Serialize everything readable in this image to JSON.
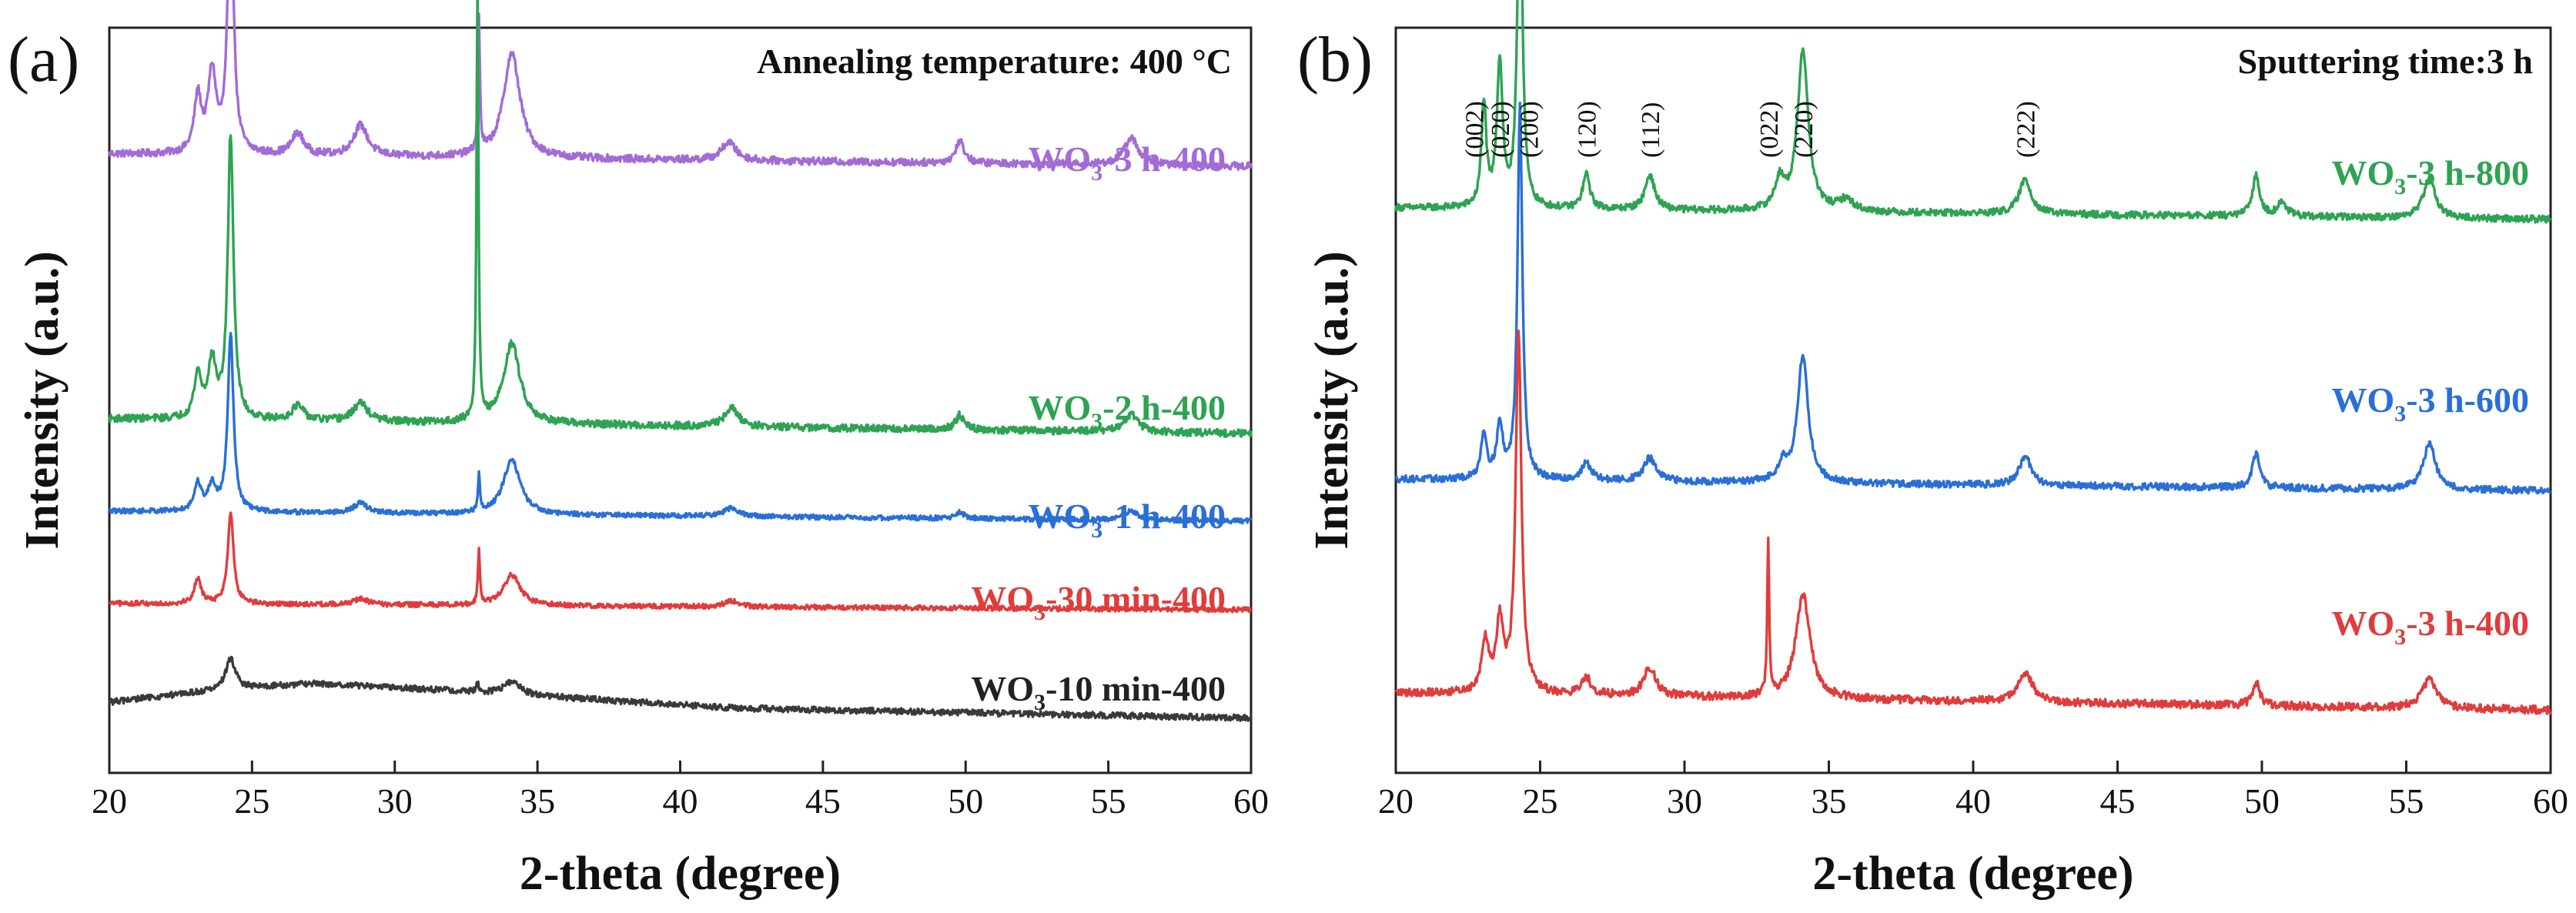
{
  "figure": {
    "panels": [
      "(a)",
      "(b)"
    ]
  },
  "chart_data": [
    {
      "panel": "(a)",
      "type": "line",
      "title": "Annealing temperature: 400 °C",
      "xlabel": "2-theta (degree)",
      "ylabel": "Intensity (a.u.)",
      "xlim": [
        20,
        60
      ],
      "xticks": [
        "20",
        "25",
        "30",
        "35",
        "40",
        "45",
        "50",
        "55",
        "60"
      ],
      "series": [
        {
          "name": "WO3-3 h-400",
          "label_main": "WO",
          "label_sub": "3",
          "label_rest": "-3 h-400",
          "color": "#a36bd6",
          "offset": 4.7,
          "noise": 0.03,
          "baseline": [
            [
              20,
              0.05
            ],
            [
              60,
              -0.05
            ]
          ],
          "peaks": [
            [
              23.1,
              0.45,
              0.15
            ],
            [
              23.6,
              0.65,
              0.17
            ],
            [
              24.25,
              2.2,
              0.12
            ],
            [
              26.6,
              0.18,
              0.25
            ],
            [
              28.8,
              0.25,
              0.3
            ],
            [
              32.95,
              1.1,
              0.04
            ],
            [
              34.1,
              0.85,
              0.35
            ],
            [
              41.7,
              0.15,
              0.3
            ],
            [
              49.8,
              0.18,
              0.18
            ],
            [
              55.8,
              0.22,
              0.3
            ]
          ]
        },
        {
          "name": "WO3-2 h-400",
          "label_main": "WO",
          "label_sub": "3",
          "label_rest": "-2 h-400",
          "color": "#2ea353",
          "offset": 2.6,
          "noise": 0.03,
          "baseline": [
            [
              20,
              0.0
            ],
            [
              60,
              -0.12
            ]
          ],
          "peaks": [
            [
              23.1,
              0.35,
              0.15
            ],
            [
              23.6,
              0.45,
              0.17
            ],
            [
              24.25,
              2.3,
              0.12
            ],
            [
              26.6,
              0.12,
              0.25
            ],
            [
              28.8,
              0.15,
              0.3
            ],
            [
              32.9,
              3.6,
              0.04
            ],
            [
              34.1,
              0.65,
              0.35
            ],
            [
              41.8,
              0.15,
              0.3
            ],
            [
              49.8,
              0.12,
              0.18
            ],
            [
              55.8,
              0.14,
              0.3
            ]
          ]
        },
        {
          "name": "WO3-1 h-400",
          "label_main": "WO",
          "label_sub": "3",
          "label_rest": "-1 h-400",
          "color": "#2a6fd6",
          "offset": 1.85,
          "noise": 0.02,
          "baseline": [
            [
              20,
              0.0
            ],
            [
              60,
              -0.08
            ]
          ],
          "peaks": [
            [
              23.1,
              0.22,
              0.15
            ],
            [
              23.6,
              0.2,
              0.17
            ],
            [
              24.25,
              1.45,
              0.12
            ],
            [
              28.8,
              0.08,
              0.3
            ],
            [
              32.95,
              0.3,
              0.04
            ],
            [
              34.1,
              0.45,
              0.35
            ],
            [
              41.8,
              0.07,
              0.3
            ],
            [
              49.8,
              0.05,
              0.18
            ],
            [
              55.8,
              0.07,
              0.3
            ]
          ]
        },
        {
          "name": "WO3-30 min-400",
          "label_main": "WO",
          "label_sub": "3",
          "label_rest": "-30 min-400",
          "color": "#e03c3c",
          "offset": 1.1,
          "noise": 0.02,
          "baseline": [
            [
              20,
              0.0
            ],
            [
              60,
              -0.05
            ]
          ],
          "peaks": [
            [
              23.1,
              0.2,
              0.15
            ],
            [
              24.25,
              0.75,
              0.12
            ],
            [
              28.8,
              0.05,
              0.3
            ],
            [
              32.95,
              0.45,
              0.04
            ],
            [
              34.1,
              0.25,
              0.35
            ],
            [
              41.8,
              0.05,
              0.3
            ]
          ]
        },
        {
          "name": "WO3-10 min-400",
          "label_main": "WO",
          "label_sub": "3",
          "label_rest": "-10 min-400",
          "color": "#3a3a3a",
          "offset": 0.3,
          "noise": 0.025,
          "baseline": [
            [
              20,
              0.0
            ],
            [
              24,
              0.1
            ],
            [
              27,
              0.15
            ],
            [
              30,
              0.12
            ],
            [
              35,
              0.05
            ],
            [
              42,
              -0.05
            ],
            [
              60,
              -0.13
            ]
          ],
          "peaks": [
            [
              24.25,
              0.25,
              0.2
            ],
            [
              32.9,
              0.08,
              0.05
            ],
            [
              34.1,
              0.1,
              0.35
            ]
          ]
        }
      ]
    },
    {
      "panel": "(b)",
      "type": "line",
      "title": "Sputtering time:3 h",
      "xlabel": "2-theta (degree)",
      "ylabel": "Intensity (a.u.)",
      "xlim": [
        20,
        60
      ],
      "xticks": [
        "20",
        "25",
        "30",
        "35",
        "40",
        "45",
        "50",
        "55",
        "60"
      ],
      "series": [
        {
          "name": "WO3-3 h-800",
          "label_main": "WO",
          "label_sub": "3",
          "label_rest": "-3 h-800",
          "color": "#2ea353",
          "offset": 4.55,
          "noise": 0.03,
          "baseline": [
            [
              20,
              0.05
            ],
            [
              60,
              -0.05
            ]
          ],
          "peaks": [
            [
              23.05,
              0.9,
              0.1
            ],
            [
              23.6,
              1.25,
              0.12
            ],
            [
              24.3,
              3.1,
              0.1
            ],
            [
              26.6,
              0.3,
              0.15
            ],
            [
              28.8,
              0.3,
              0.2
            ],
            [
              33.3,
              0.25,
              0.2
            ],
            [
              34.1,
              1.4,
              0.22
            ],
            [
              35.6,
              0.1,
              0.3
            ],
            [
              41.8,
              0.3,
              0.25
            ],
            [
              49.8,
              0.35,
              0.15
            ],
            [
              50.7,
              0.12,
              0.2
            ],
            [
              55.8,
              0.35,
              0.25
            ]
          ]
        },
        {
          "name": "WO3-3 h-600",
          "label_main": "WO",
          "label_sub": "3",
          "label_rest": "-3 h-600",
          "color": "#2a6fd6",
          "offset": 2.2,
          "noise": 0.03,
          "baseline": [
            [
              20,
              0.05
            ],
            [
              60,
              -0.05
            ]
          ],
          "peaks": [
            [
              23.05,
              0.4,
              0.12
            ],
            [
              23.6,
              0.45,
              0.13
            ],
            [
              24.3,
              3.25,
              0.1
            ],
            [
              26.6,
              0.15,
              0.2
            ],
            [
              28.8,
              0.2,
              0.25
            ],
            [
              33.4,
              0.15,
              0.2
            ],
            [
              34.1,
              1.1,
              0.22
            ],
            [
              41.8,
              0.25,
              0.25
            ],
            [
              49.8,
              0.3,
              0.15
            ],
            [
              55.8,
              0.4,
              0.25
            ]
          ]
        },
        {
          "name": "WO3-3 h-400",
          "label_main": "WO",
          "label_sub": "3",
          "label_rest": "-3 h-400",
          "color": "#e03c3c",
          "offset": 0.3,
          "noise": 0.035,
          "baseline": [
            [
              20,
              0.1
            ],
            [
              60,
              -0.05
            ]
          ],
          "peaks": [
            [
              23.1,
              0.45,
              0.15
            ],
            [
              23.6,
              0.6,
              0.15
            ],
            [
              24.25,
              3.1,
              0.12
            ],
            [
              26.6,
              0.15,
              0.2
            ],
            [
              28.8,
              0.25,
              0.25
            ],
            [
              32.9,
              1.35,
              0.04
            ],
            [
              34.1,
              0.9,
              0.3
            ],
            [
              41.8,
              0.25,
              0.3
            ],
            [
              49.8,
              0.2,
              0.15
            ],
            [
              55.8,
              0.25,
              0.3
            ]
          ]
        }
      ],
      "peak_labels": [
        {
          "text": "(002)",
          "x": 22.7
        },
        {
          "text": "(020)",
          "x": 23.6
        },
        {
          "text": "(200)",
          "x": 24.6
        },
        {
          "text": "(120)",
          "x": 26.6
        },
        {
          "text": "(112)",
          "x": 28.8
        },
        {
          "text": "(022)",
          "x": 32.9
        },
        {
          "text": "(220)",
          "x": 34.1
        },
        {
          "text": "(222)",
          "x": 41.8
        }
      ]
    }
  ]
}
